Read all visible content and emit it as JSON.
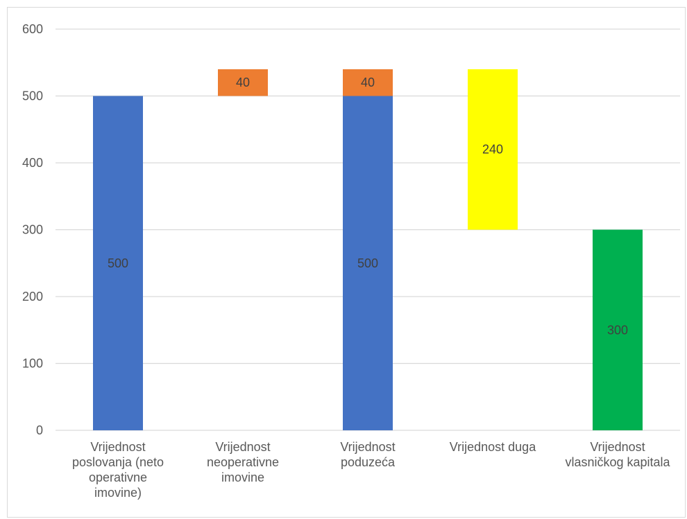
{
  "chart_data": {
    "type": "bar",
    "subtype": "waterfall",
    "title": "",
    "xlabel": "",
    "ylabel": "",
    "ylim": [
      0,
      600
    ],
    "yticks": [
      0,
      100,
      200,
      300,
      400,
      500,
      600
    ],
    "grid": true,
    "legend": "none",
    "categories": [
      [
        "Vrijednost",
        "poslovanja (neto",
        "operativne",
        "imovine)"
      ],
      [
        "Vrijednost",
        "neoperativne",
        "imovine"
      ],
      [
        "Vrijednost",
        "poduzeća"
      ],
      [
        "Vrijednost duga"
      ],
      [
        "Vrijednost",
        "vlasničkog kapitala"
      ]
    ],
    "bars": [
      {
        "base": 0,
        "value": 500,
        "label": "500",
        "color": "#4472C4"
      },
      {
        "base": 500,
        "value": 40,
        "label": "40",
        "color": "#ED7D31"
      },
      {
        "base": 0,
        "value": 500,
        "label": "500",
        "color": "#4472C4"
      },
      {
        "base": 500,
        "value": 40,
        "label": "40",
        "color": "#ED7D31"
      },
      {
        "base": 300,
        "value": 240,
        "label": "240",
        "color": "#FFFF00"
      },
      {
        "base": 0,
        "value": 300,
        "label": "300",
        "color": "#00B050"
      }
    ],
    "bar_category_index": [
      0,
      1,
      2,
      2,
      3,
      4
    ],
    "gridline_color": "#d9d9d9"
  }
}
